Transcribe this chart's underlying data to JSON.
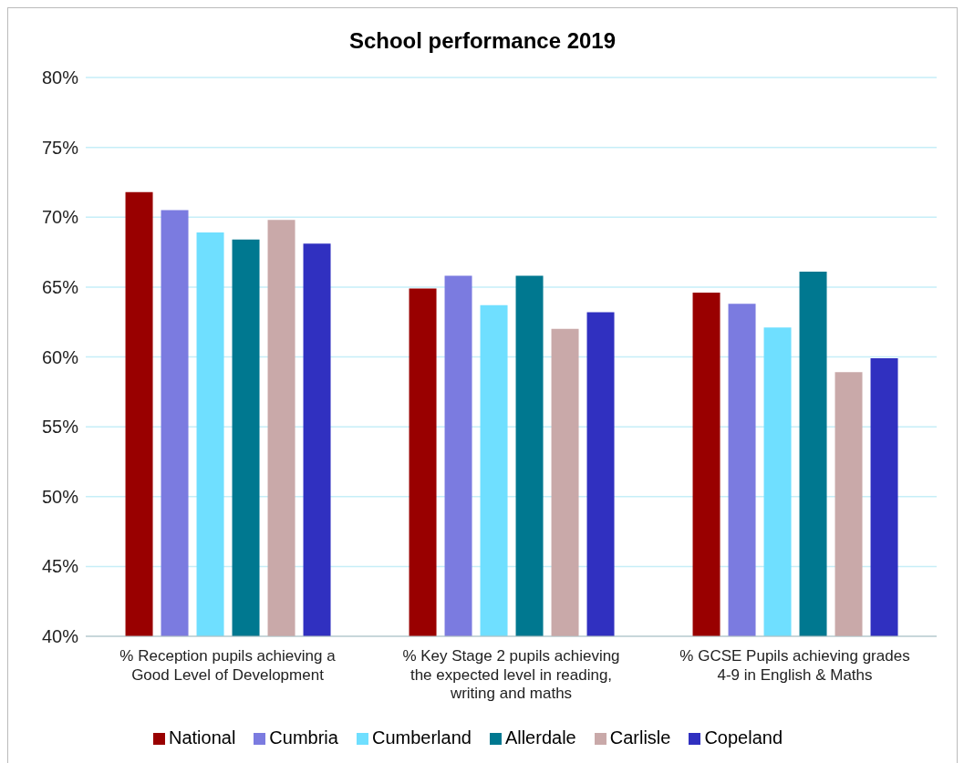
{
  "chart_data": {
    "type": "bar",
    "title": "School performance 2019",
    "categories": [
      "% Reception pupils achieving a Good Level of Development",
      "% Key Stage 2 pupils achieving the expected level in reading, writing and maths",
      "% GCSE Pupils achieving grades 4-9 in English & Maths"
    ],
    "series": [
      {
        "name": "National",
        "color": "#990000",
        "values": [
          71.8,
          64.9,
          64.6
        ]
      },
      {
        "name": "Cumbria",
        "color": "#7b7be0",
        "values": [
          70.5,
          65.8,
          63.8
        ]
      },
      {
        "name": "Cumberland",
        "color": "#6fdfff",
        "values": [
          68.9,
          63.7,
          62.1
        ]
      },
      {
        "name": "Allerdale",
        "color": "#007890",
        "values": [
          68.4,
          65.8,
          66.1
        ]
      },
      {
        "name": "Carlisle",
        "color": "#c9a9a9",
        "values": [
          69.8,
          62.0,
          58.9
        ]
      },
      {
        "name": "Copeland",
        "color": "#3030c0",
        "values": [
          68.1,
          63.2,
          59.9
        ]
      }
    ],
    "ylim": [
      40,
      80
    ],
    "yticks": [
      {
        "value": 40,
        "label": "40%"
      },
      {
        "value": 45,
        "label": "45%"
      },
      {
        "value": 50,
        "label": "50%"
      },
      {
        "value": 55,
        "label": "55%"
      },
      {
        "value": 60,
        "label": "60%"
      },
      {
        "value": 65,
        "label": "65%"
      },
      {
        "value": 70,
        "label": "70%"
      },
      {
        "value": 75,
        "label": "75%"
      },
      {
        "value": 80,
        "label": "80%"
      }
    ],
    "grid": "y",
    "legend": "bottom"
  }
}
